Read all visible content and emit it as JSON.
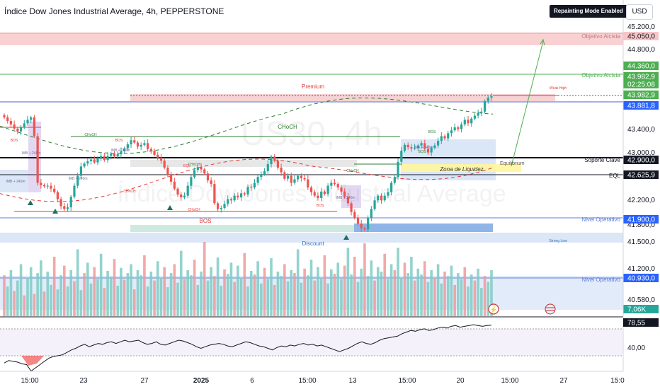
{
  "header": {
    "title": "Índice Dow Jones Industrial Average, 4h, PEPPERSTONE",
    "mode_badge": "Repainting Mode Enabled",
    "currency": "USD"
  },
  "watermark": {
    "symbol": "US30, 4h",
    "name": "Índice Dow Jones Industrial Average"
  },
  "chart_data": [
    {
      "type": "candlestick",
      "title": "Índice Dow Jones Industrial Average, 4h, PEPPERSTONE",
      "y_ticks": [
        45200,
        44800,
        43400,
        43000,
        42200,
        41800,
        41500,
        41200,
        40580
      ],
      "y_tick_labels": [
        "45.200,0",
        "44.800,0",
        "43.400,0",
        "43.000,0",
        "42.200,0",
        "41.800,0",
        "41.500,0",
        "41.200,0",
        "40.580,0"
      ],
      "x_tick_labels": [
        "15:00",
        "23",
        "27",
        "2025",
        "6",
        "15:00",
        "13",
        "15:00",
        "20",
        "15:00",
        "27",
        "15:0"
      ],
      "price_labels": [
        {
          "text": "45.050,0",
          "kind": "objective"
        },
        {
          "text": "44.360,0",
          "kind": "objective-green"
        },
        {
          "text": "43.982,9",
          "kind": "last"
        },
        {
          "text": "02:25:08",
          "kind": "countdown"
        },
        {
          "text": "43.982,9",
          "kind": "last"
        },
        {
          "text": "43.881,8",
          "kind": "blue"
        },
        {
          "text": "42.900,0",
          "kind": "black"
        },
        {
          "text": "42.625,9",
          "kind": "black"
        },
        {
          "text": "41.900,0",
          "kind": "blue"
        },
        {
          "text": "40.930,0",
          "kind": "blue"
        },
        {
          "text": "7,06K",
          "kind": "volume"
        }
      ],
      "levels": [
        {
          "label": "Objetivo Alcista",
          "value": 45050
        },
        {
          "label": "Objetivo Alcista",
          "value": 44360
        },
        {
          "label": "Soporte Clave",
          "value": 42900
        },
        {
          "label": "EQL",
          "value": 42625.9
        },
        {
          "label": "Nivel Operativo",
          "value": 41900
        },
        {
          "label": "Nivel Operativo",
          "value": 40930
        }
      ],
      "zones": {
        "premium": "Premium",
        "discount": "Discount",
        "liquidity": "Zona de Liquidez",
        "equilibrium": "Equilibrium",
        "weak_high": "Weak High",
        "strong_low": "Strong Low"
      },
      "structure_labels": [
        "BOS",
        "CHoCH",
        "CHoCH",
        "BOS",
        "CHoCH",
        "CHoCH",
        "EQL",
        "CHoCH",
        "BOS",
        "BOS",
        "CHoCH",
        "BOS",
        "BOS"
      ],
      "ob_labels": [
        "IMB + 240m",
        "IMB + 240m",
        "IMB + 240m",
        "IMB + 240m",
        "IMB + 240m",
        "IMB + 240m"
      ],
      "closes": [
        43620,
        43560,
        43500,
        43430,
        43380,
        43450,
        43520,
        43580,
        43620,
        43300,
        42500,
        42460,
        42440,
        42450,
        42400,
        42340,
        42220,
        42100,
        42050,
        42080,
        42260,
        42450,
        42620,
        42780,
        42830,
        42870,
        42900,
        42850,
        42930,
        42960,
        42890,
        42960,
        43000,
        42950,
        42990,
        43040,
        43090,
        43160,
        43230,
        43190,
        43120,
        43150,
        43180,
        43080,
        43050,
        42980,
        42930,
        42880,
        42760,
        42640,
        42520,
        42400,
        42300,
        42250,
        42280,
        42450,
        42600,
        42720,
        42770,
        42730,
        42660,
        42540,
        42480,
        42150,
        42050,
        42070,
        42140,
        42220,
        42200,
        42280,
        42250,
        42320,
        42300,
        42430,
        42420,
        42500,
        42600,
        42650,
        42700,
        42820,
        42950,
        42880,
        42760,
        42680,
        42570,
        42620,
        42500,
        42560,
        42620,
        42580,
        42560,
        42420,
        42340,
        42280,
        42240,
        42350,
        42310,
        42450,
        42500,
        42480,
        42420,
        42350,
        42260,
        42150,
        42000,
        41900,
        41800,
        41720,
        41700,
        41900,
        42050,
        42200,
        42280,
        42200,
        42280,
        42340,
        42500,
        42600,
        42860,
        43050,
        43150,
        43110,
        43090,
        43100,
        43140,
        43180,
        43080,
        43020,
        43100,
        43140,
        43220,
        43300,
        43260,
        43350,
        43400,
        43450,
        43420,
        43500,
        43580,
        43520,
        43600,
        43650,
        43700,
        43720,
        43900,
        43960,
        43982.9
      ],
      "volume": [
        55,
        40,
        62,
        34,
        48,
        70,
        28,
        52,
        66,
        30,
        58,
        75,
        33,
        60,
        42,
        80,
        36,
        55,
        68,
        40,
        62,
        47,
        90,
        35,
        58,
        72,
        44,
        66,
        50,
        84,
        38,
        61,
        53,
        77,
        41,
        65,
        49,
        58,
        70,
        36,
        62,
        55,
        82,
        40,
        60,
        48,
        74,
        52,
        66,
        39,
        58,
        70,
        45,
        88,
        50,
        62,
        55,
        76,
        42,
        60,
        100,
        48,
        66,
        54,
        79,
        41,
        63,
        57,
        72,
        46,
        68,
        52,
        85,
        40,
        61,
        56,
        74,
        44,
        65,
        50,
        78,
        42,
        60,
        54,
        70,
        47,
        62,
        58,
        90,
        45,
        64,
        55,
        76,
        48,
        66,
        52,
        82,
        44,
        63,
        57,
        72,
        50,
        68,
        92,
        56,
        80,
        46,
        64,
        98,
        54,
        75,
        48,
        66,
        60,
        84,
        50,
        70,
        62,
        92,
        52,
        72,
        58,
        80,
        48,
        64,
        56,
        74,
        46,
        62,
        52,
        70,
        44,
        60,
        54,
        68,
        42,
        58,
        50,
        66,
        40,
        56,
        48,
        64,
        38,
        54,
        46,
        62
      ]
    },
    {
      "type": "line",
      "title": "RSI",
      "y_tick_labels": [
        "40,00"
      ],
      "current_label": "78,55",
      "values": [
        32,
        35,
        34,
        33,
        31,
        30,
        22,
        26,
        30,
        34,
        38,
        40,
        41,
        42,
        45,
        48,
        50,
        53,
        55,
        52,
        54,
        56,
        55,
        57,
        58,
        56,
        58,
        60,
        58,
        59,
        60,
        57,
        55,
        56,
        58,
        55,
        54,
        56,
        58,
        60,
        59,
        57,
        55,
        52,
        50,
        52,
        54,
        55,
        56,
        55,
        53,
        52,
        54,
        56,
        58,
        57,
        55,
        53,
        52,
        50,
        48,
        51,
        53,
        52,
        54,
        53,
        55,
        56,
        54,
        55,
        53,
        54,
        52,
        50,
        48,
        46,
        48,
        50,
        53,
        56,
        58,
        56,
        55,
        57,
        60,
        62,
        63,
        64,
        65,
        68,
        70,
        72,
        71,
        73,
        74,
        72,
        73,
        75,
        76,
        75,
        77,
        78,
        76,
        77,
        78,
        79,
        78,
        77,
        78,
        78.55
      ]
    }
  ]
}
